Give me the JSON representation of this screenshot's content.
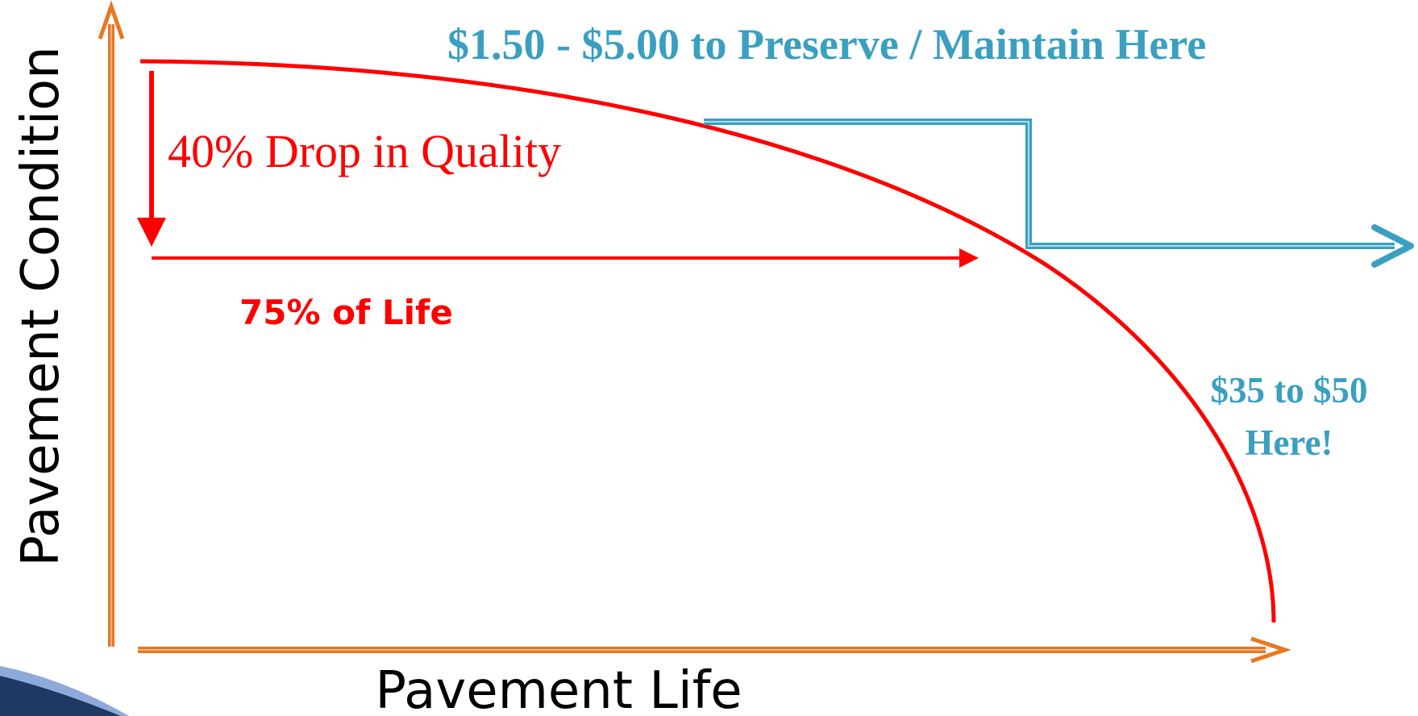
{
  "axes": {
    "y_label": "Pavement Condition",
    "x_label": "Pavement Life"
  },
  "annotations": {
    "preserve": "$1.50 - $5.00 to Preserve / Maintain Here",
    "drop": "40% Drop in Quality",
    "life": "75% of Life",
    "repair_line1": "$35 to $50",
    "repair_line2": "Here!"
  }
}
